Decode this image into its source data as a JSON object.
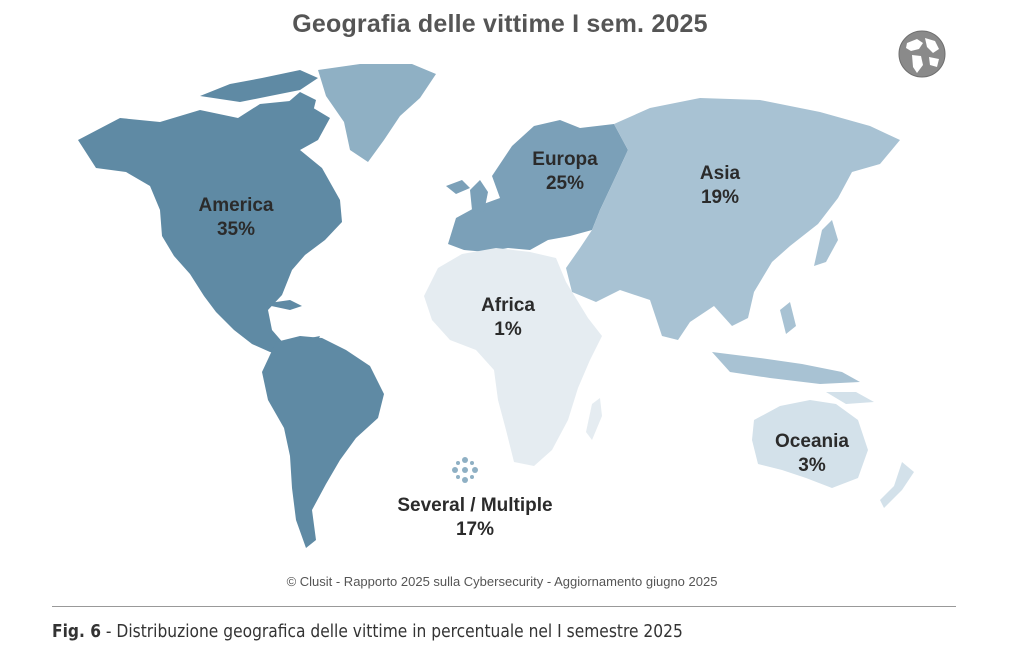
{
  "title": "Geografia delle vittime I sem. 2025",
  "regions": [
    {
      "name": "America",
      "value": "35%",
      "color": "#5f8aa4"
    },
    {
      "name": "Europa",
      "value": "25%",
      "color": "#7ba0b8"
    },
    {
      "name": "Asia",
      "value": "19%",
      "color": "#a8c2d3"
    },
    {
      "name": "Africa",
      "value": "1%",
      "color": "#e5ecf1"
    },
    {
      "name": "Oceania",
      "value": "3%",
      "color": "#d3e1ea"
    },
    {
      "name": "Several / Multiple",
      "value": "17%",
      "color": "#8fb0c4"
    }
  ],
  "greenland_color": "#8fb0c4",
  "credit": "© Clusit - Rapporto 2025 sulla Cybersecurity - Aggiornamento giugno 2025",
  "caption": {
    "prefix": "Fig. 6",
    "text": " - Distribuzione geografica delle vittime in percentuale nel I semestre 2025"
  },
  "icons": {
    "globe": "globe-icon",
    "multiple": "dotted-cross-icon"
  }
}
